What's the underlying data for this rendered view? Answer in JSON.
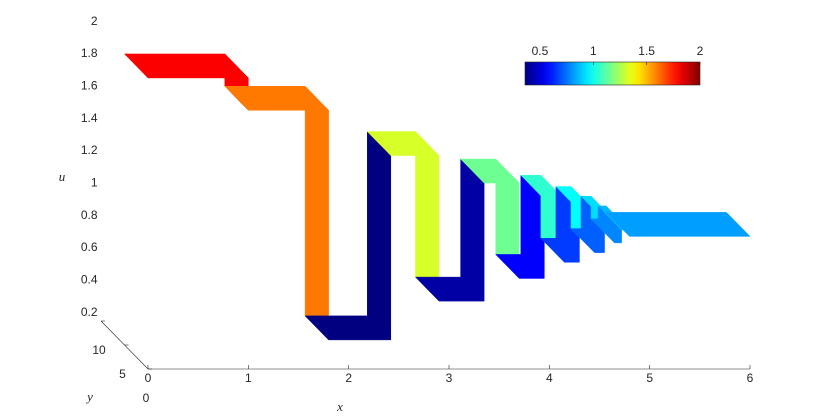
{
  "chart_data": {
    "type": "ribbon3d",
    "x": [
      0,
      1,
      1,
      1.8,
      1.8,
      2.42,
      2.42,
      2.9,
      2.9,
      3.35,
      3.35,
      3.7,
      3.7,
      3.95,
      3.95,
      4.15,
      4.15,
      4.3,
      4.3,
      4.45,
      4.45,
      4.55,
      4.55,
      4.65,
      4.65,
      4.72,
      4.72,
      4.8,
      4.8,
      6
    ],
    "values": [
      1.8,
      1.8,
      1.6,
      1.6,
      0.18,
      0.18,
      1.32,
      1.32,
      0.42,
      0.42,
      1.15,
      1.15,
      0.56,
      0.56,
      1.05,
      1.05,
      0.66,
      0.66,
      0.98,
      0.98,
      0.72,
      0.72,
      0.92,
      0.92,
      0.78,
      0.78,
      0.86,
      0.86,
      0.82,
      0.82
    ],
    "xlabel": "x",
    "ylabel": "y",
    "zlabel": "u",
    "xlim": [
      0,
      6
    ],
    "xticks": [
      0,
      1,
      2,
      3,
      4,
      5,
      6
    ],
    "ylim": [
      0,
      10
    ],
    "yticks": [
      0,
      5,
      10
    ],
    "zlim": [
      0,
      2
    ],
    "zticks": [
      0.2,
      0.4,
      0.6,
      0.8,
      1,
      1.2,
      1.4,
      1.6,
      1.8,
      2
    ],
    "colormap": "jet",
    "clim": [
      0.36,
      2
    ],
    "colorbar_ticks": [
      0.5,
      1,
      1.5,
      2
    ]
  }
}
